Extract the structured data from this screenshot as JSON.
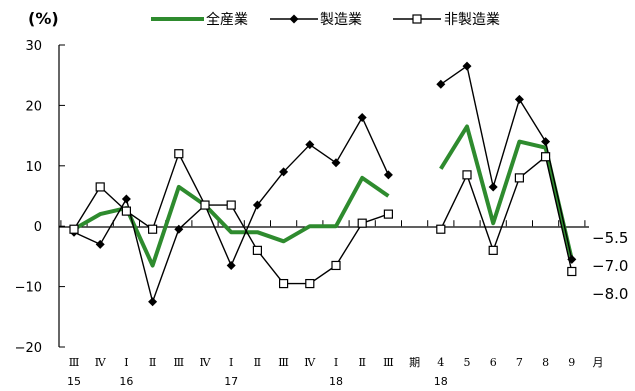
{
  "chart_data": {
    "type": "line",
    "unit_label": "(%)",
    "y_ticks": [
      "30",
      "20",
      "10",
      "0",
      "−10",
      "−20"
    ],
    "ylim": [
      -20,
      30
    ],
    "grid": false,
    "legend_placement": "top",
    "x_labels": [
      "Ⅲ",
      "Ⅳ",
      "Ⅰ",
      "Ⅱ",
      "Ⅲ",
      "Ⅳ",
      "Ⅰ",
      "Ⅱ",
      "Ⅲ",
      "Ⅳ",
      "Ⅰ",
      "Ⅱ",
      "Ⅲ",
      "期",
      "4",
      "5",
      "6",
      "7",
      "8",
      "9",
      "月"
    ],
    "year_labels": [
      {
        "slot": 0,
        "text": "15"
      },
      {
        "slot": 2,
        "text": "16"
      },
      {
        "slot": 6,
        "text": "17"
      },
      {
        "slot": 10,
        "text": "18"
      },
      {
        "slot": 14,
        "text": "18"
      }
    ],
    "side_notes": [
      "−5.5",
      "−7.0",
      "−8.0"
    ],
    "series": [
      {
        "name": "全産業",
        "color": "#2e8b2e",
        "marker": "none",
        "quarterly": [
          -0.5,
          2.0,
          3.0,
          -6.5,
          6.5,
          3.5,
          -1.0,
          -1.0,
          -2.5,
          0.0,
          0.0,
          8.0,
          5.0
        ],
        "monthly": [
          9.5,
          16.5,
          0.5,
          14.0,
          13.0,
          -5.5
        ]
      },
      {
        "name": "製造業",
        "color": "#000000",
        "marker": "diamond",
        "quarterly": [
          -1.0,
          -3.0,
          4.5,
          -12.5,
          -0.5,
          3.5,
          -6.5,
          3.5,
          9.0,
          13.5,
          10.5,
          18.0,
          8.5
        ],
        "monthly": [
          23.5,
          26.5,
          6.5,
          21.0,
          14.0,
          -5.5
        ]
      },
      {
        "name": "非製造業",
        "color": "#000000",
        "marker": "square",
        "quarterly": [
          -0.5,
          6.5,
          2.5,
          -0.5,
          12.0,
          3.5,
          3.5,
          -4.0,
          -9.5,
          -9.5,
          -6.5,
          0.5,
          2.0
        ],
        "monthly": [
          -0.5,
          8.5,
          -4.0,
          8.0,
          11.5,
          -7.5
        ]
      }
    ]
  }
}
